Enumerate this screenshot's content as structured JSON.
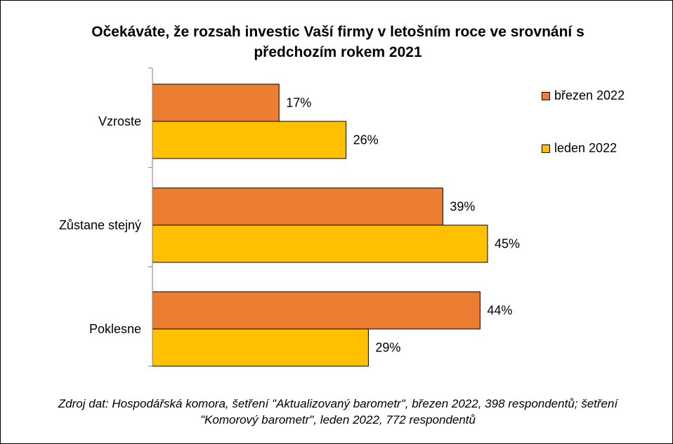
{
  "title": "Očekáváte, že rozsah investic Vaší firmy v letošním roce ve srovnání s předchozím rokem 2021",
  "source_note": "Zdroj dat: Hospodářská komora, šetření \"Aktualizovaný barometr\", březen 2022, 398 respondentů; šetření \"Komorový barometr\", leden 2022, 772 respondentů",
  "chart_data": {
    "type": "bar",
    "orientation": "horizontal",
    "title": "Očekáváte, že rozsah investic Vaší firmy v letošním roce ve srovnání s předchozím rokem 2021",
    "categories": [
      "Vzroste",
      "Zůstane stejný",
      "Poklesne"
    ],
    "series": [
      {
        "name": "březen 2022",
        "color": "#ED7D31",
        "values": [
          17,
          39,
          44
        ],
        "labels": [
          "17%",
          "39%",
          "44%"
        ]
      },
      {
        "name": "leden 2022",
        "color": "#FFC000",
        "values": [
          26,
          45,
          29
        ],
        "labels": [
          "26%",
          "45%",
          "29%"
        ]
      }
    ],
    "value_unit": "%",
    "xlim": [
      0,
      50
    ],
    "grid": false,
    "legend_position": "right"
  }
}
